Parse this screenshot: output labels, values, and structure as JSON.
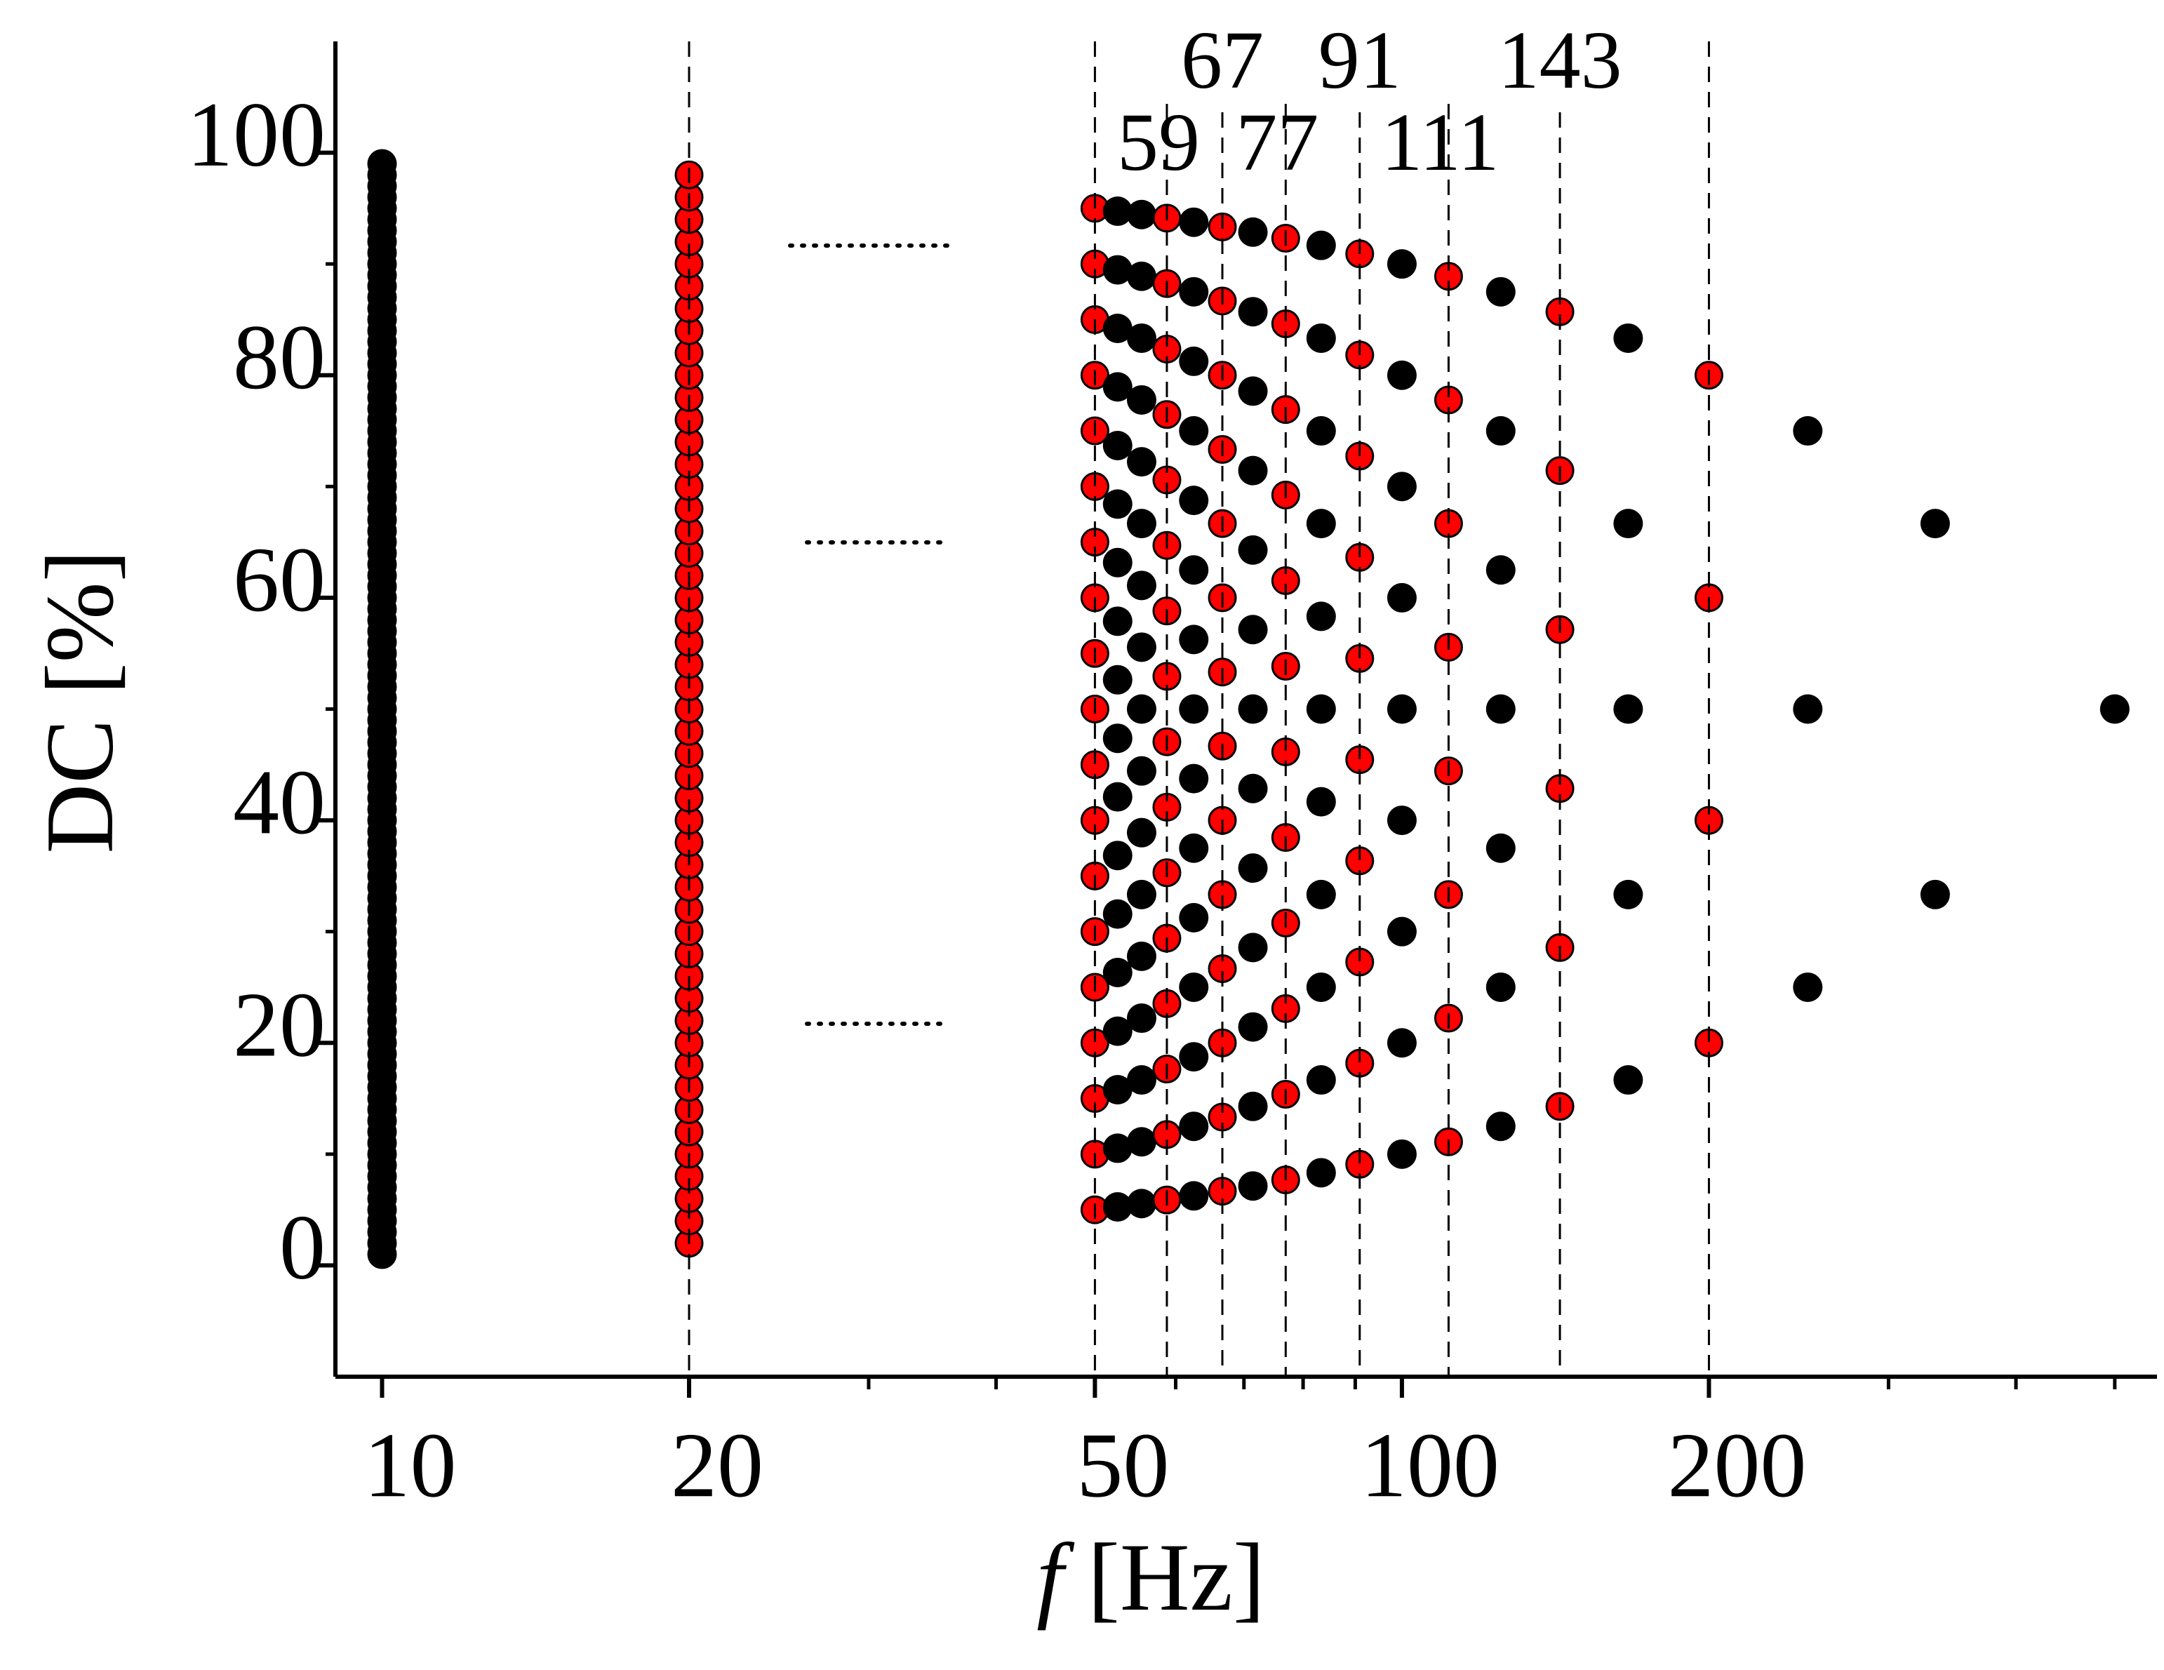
{
  "chart_data": {
    "type": "scatter",
    "xlabel_symbol": "f",
    "xlabel_unit": "[Hz]",
    "ylabel": "DC [%]",
    "xscale": "log",
    "xlim": [
      9,
      550
    ],
    "xticks": [
      10,
      20,
      50,
      100,
      200
    ],
    "xminorticks": [
      30,
      40,
      60,
      70,
      80,
      90,
      300,
      400,
      500
    ],
    "ylim": [
      -10,
      110
    ],
    "yticks": [
      0,
      20,
      40,
      60,
      80,
      100
    ],
    "yminorticks": [
      10,
      30,
      50,
      70,
      90
    ],
    "vlines": [
      20,
      50,
      {
        "value": 58.82,
        "label": "59"
      },
      {
        "value": 66.67,
        "label": "67"
      },
      {
        "value": 76.92,
        "label": "77"
      },
      {
        "value": 90.91,
        "label": "91"
      },
      {
        "value": 111.11,
        "label": "111"
      },
      {
        "value": 142.86,
        "label": "143"
      },
      200
    ],
    "series": [
      {
        "color": "#000000",
        "x": 10,
        "values": [
          1,
          2,
          3,
          4,
          5,
          6,
          7,
          8,
          9,
          10,
          11,
          12,
          13,
          14,
          15,
          16,
          17,
          18,
          19,
          20,
          21,
          22,
          23,
          24,
          25,
          26,
          27,
          28,
          29,
          30,
          31,
          32,
          33,
          34,
          35,
          36,
          37,
          38,
          39,
          40,
          41,
          42,
          43,
          44,
          45,
          46,
          47,
          48,
          49,
          50,
          51,
          52,
          53,
          54,
          55,
          56,
          57,
          58,
          59,
          60,
          61,
          62,
          63,
          64,
          65,
          66,
          67,
          68,
          69,
          70,
          71,
          72,
          73,
          74,
          75,
          76,
          77,
          78,
          79,
          80,
          81,
          82,
          83,
          84,
          85,
          86,
          87,
          88,
          89,
          90,
          91,
          92,
          93,
          94,
          95,
          96,
          97,
          98,
          99
        ]
      },
      {
        "color": "#ff0000",
        "edgecolor": "#000000",
        "x": 20,
        "values": [
          2,
          4,
          6,
          8,
          10,
          12,
          14,
          16,
          18,
          20,
          22,
          24,
          26,
          28,
          30,
          32,
          34,
          36,
          38,
          40,
          42,
          44,
          46,
          48,
          50,
          52,
          54,
          56,
          58,
          60,
          62,
          64,
          66,
          68,
          70,
          72,
          74,
          76,
          78,
          80,
          82,
          84,
          86,
          88,
          90,
          92,
          94,
          96,
          98
        ]
      },
      {
        "color": "#ff0000",
        "edgecolor": "#000000",
        "x": 50,
        "values": [
          5,
          10,
          15,
          20,
          25,
          30,
          35,
          40,
          45,
          50,
          55,
          60,
          65,
          70,
          75,
          80,
          85,
          90,
          95
        ]
      },
      {
        "color": "#000000",
        "x": 52.63,
        "values": [
          5.26,
          10.53,
          15.79,
          21.05,
          26.32,
          31.58,
          36.84,
          42.11,
          47.37,
          52.63,
          57.89,
          63.16,
          68.42,
          73.68,
          78.95,
          84.21,
          89.47,
          94.74
        ]
      },
      {
        "color": "#000000",
        "x": 55.56,
        "values": [
          5.56,
          11.11,
          16.67,
          22.22,
          27.78,
          33.33,
          38.89,
          44.44,
          50,
          55.56,
          61.11,
          66.67,
          72.22,
          77.78,
          83.33,
          88.89,
          94.44
        ]
      },
      {
        "color": "#ff0000",
        "edgecolor": "#000000",
        "x": 58.82,
        "values": [
          5.88,
          11.76,
          17.65,
          23.53,
          29.41,
          35.29,
          41.18,
          47.06,
          52.94,
          58.82,
          64.71,
          70.59,
          76.47,
          82.35,
          88.24,
          94.12
        ]
      },
      {
        "color": "#000000",
        "x": 62.5,
        "values": [
          6.25,
          12.5,
          18.75,
          25,
          31.25,
          37.5,
          43.75,
          50,
          56.25,
          62.5,
          68.75,
          75,
          81.25,
          87.5,
          93.75
        ]
      },
      {
        "color": "#ff0000",
        "edgecolor": "#000000",
        "x": 66.67,
        "values": [
          6.67,
          13.33,
          20,
          26.67,
          33.33,
          40,
          46.67,
          53.33,
          60,
          66.67,
          73.33,
          80,
          86.67,
          93.33
        ]
      },
      {
        "color": "#000000",
        "x": 71.43,
        "values": [
          7.14,
          14.29,
          21.43,
          28.57,
          35.71,
          42.86,
          50,
          57.14,
          64.29,
          71.43,
          78.57,
          85.71,
          92.86
        ]
      },
      {
        "color": "#ff0000",
        "edgecolor": "#000000",
        "x": 76.92,
        "values": [
          7.69,
          15.38,
          23.08,
          30.77,
          38.46,
          46.15,
          53.85,
          61.54,
          69.23,
          76.92,
          84.62,
          92.31
        ]
      },
      {
        "color": "#000000",
        "x": 83.33,
        "values": [
          8.33,
          16.67,
          25,
          33.33,
          41.67,
          50,
          58.33,
          66.67,
          75,
          83.33,
          91.67
        ]
      },
      {
        "color": "#ff0000",
        "edgecolor": "#000000",
        "x": 90.91,
        "values": [
          9.09,
          18.18,
          27.27,
          36.36,
          45.45,
          54.55,
          63.64,
          72.73,
          81.82,
          90.91
        ]
      },
      {
        "color": "#000000",
        "x": 100,
        "values": [
          10,
          20,
          30,
          40,
          50,
          60,
          70,
          80,
          90
        ]
      },
      {
        "color": "#ff0000",
        "edgecolor": "#000000",
        "x": 111.11,
        "values": [
          11.11,
          22.22,
          33.33,
          44.44,
          55.56,
          66.67,
          77.78,
          88.89
        ]
      },
      {
        "color": "#000000",
        "x": 125,
        "values": [
          12.5,
          25,
          37.5,
          50,
          62.5,
          75,
          87.5
        ]
      },
      {
        "color": "#ff0000",
        "edgecolor": "#000000",
        "x": 142.86,
        "values": [
          14.29,
          28.57,
          42.86,
          57.14,
          71.43,
          85.71
        ]
      },
      {
        "color": "#000000",
        "x": 166.67,
        "values": [
          16.67,
          33.33,
          50,
          66.67,
          83.33
        ]
      },
      {
        "color": "#ff0000",
        "edgecolor": "#000000",
        "x": 200,
        "values": [
          20,
          40,
          60,
          80
        ]
      },
      {
        "color": "#000000",
        "x": 250,
        "values": [
          25,
          50,
          75
        ]
      },
      {
        "color": "#000000",
        "x": 333.33,
        "values": [
          33.33,
          66.67
        ]
      },
      {
        "color": "#000000",
        "x": 500,
        "values": [
          50
        ]
      }
    ]
  }
}
